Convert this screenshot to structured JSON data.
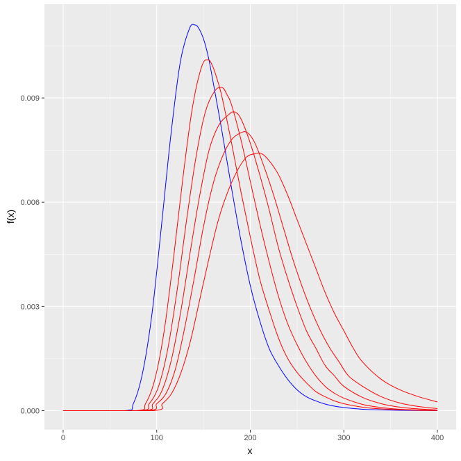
{
  "chart_data": {
    "type": "line",
    "title": "",
    "xlabel": "x",
    "ylabel": "f(x)",
    "xlim": [
      -20,
      420
    ],
    "ylim": [
      -0.00055,
      0.0117
    ],
    "x_ticks": [
      0,
      100,
      200,
      300,
      400
    ],
    "x_tick_labels": [
      "0",
      "100",
      "200",
      "300",
      "400"
    ],
    "y_ticks": [
      0.0,
      0.003,
      0.006,
      0.009
    ],
    "y_tick_labels": [
      "0.000",
      "0.003",
      "0.006",
      "0.009"
    ],
    "grid": true,
    "colors": {
      "panel": "#ebebeb",
      "grid": "#ffffff",
      "blue": "#0000ff",
      "red": "#ff0000"
    },
    "series": [
      {
        "color": "#0000ff",
        "x": [
          0,
          66,
          75,
          85,
          95,
          105,
          115,
          125,
          135,
          141,
          145,
          150,
          155,
          160,
          170,
          180,
          190,
          200,
          210,
          220,
          230,
          240,
          250,
          260,
          270,
          280,
          290,
          300,
          320,
          340,
          360,
          380,
          400
        ],
        "y": [
          0,
          0,
          0.0002,
          0.0011,
          0.0028,
          0.0053,
          0.0079,
          0.01,
          0.011,
          0.0111,
          0.011,
          0.0107,
          0.0102,
          0.0095,
          0.008,
          0.0064,
          0.0049,
          0.0036,
          0.0026,
          0.0018,
          0.0013,
          0.0009,
          0.0006,
          0.0004,
          0.00028,
          0.00019,
          0.00013,
          9e-05,
          4e-05,
          2e-05,
          1e-05,
          5e-06,
          2e-06
        ]
      },
      {
        "color": "#ff0000",
        "x": [
          0,
          78,
          88,
          98,
          108,
          118,
          128,
          138,
          148,
          155,
          160,
          165,
          170,
          180,
          190,
          200,
          210,
          220,
          230,
          240,
          250,
          260,
          270,
          280,
          290,
          300,
          320,
          340,
          360,
          380,
          400
        ],
        "y": [
          0,
          0,
          0.0002,
          0.0009,
          0.0023,
          0.0044,
          0.0067,
          0.0087,
          0.0099,
          0.0101,
          0.0099,
          0.0095,
          0.009,
          0.0077,
          0.0063,
          0.005,
          0.0038,
          0.0029,
          0.0021,
          0.0015,
          0.0011,
          0.0008,
          0.00055,
          0.0004,
          0.00028,
          0.0002,
          0.0001,
          5e-05,
          3e-05,
          1e-05,
          5e-06
        ]
      },
      {
        "color": "#ff0000",
        "x": [
          0,
          82,
          92,
          102,
          112,
          122,
          132,
          142,
          152,
          162,
          170,
          175,
          180,
          190,
          200,
          210,
          220,
          230,
          240,
          250,
          260,
          270,
          280,
          290,
          300,
          320,
          340,
          360,
          380,
          400
        ],
        "y": [
          0,
          0,
          0.0002,
          0.0007,
          0.0018,
          0.0035,
          0.0055,
          0.0073,
          0.0086,
          0.0092,
          0.0093,
          0.0091,
          0.0088,
          0.0078,
          0.0066,
          0.0054,
          0.0043,
          0.0033,
          0.0025,
          0.0019,
          0.0014,
          0.001,
          0.0007,
          0.0005,
          0.00036,
          0.00018,
          9e-05,
          4e-05,
          2e-05,
          1e-05
        ]
      },
      {
        "color": "#ff0000",
        "x": [
          0,
          86,
          96,
          106,
          116,
          126,
          136,
          146,
          156,
          166,
          176,
          183,
          190,
          200,
          210,
          220,
          230,
          240,
          250,
          260,
          270,
          280,
          290,
          300,
          320,
          340,
          360,
          380,
          400
        ],
        "y": [
          0,
          0,
          0.0002,
          0.0006,
          0.0015,
          0.0029,
          0.0046,
          0.0062,
          0.0075,
          0.0082,
          0.0085,
          0.0086,
          0.0084,
          0.0077,
          0.0068,
          0.0058,
          0.0047,
          0.0038,
          0.003,
          0.0023,
          0.0018,
          0.0013,
          0.001,
          0.0007,
          0.00038,
          0.0002,
          0.0001,
          5e-05,
          2e-05
        ]
      },
      {
        "color": "#ff0000",
        "x": [
          0,
          90,
          100,
          110,
          120,
          130,
          140,
          150,
          160,
          170,
          180,
          190,
          197,
          205,
          215,
          225,
          235,
          245,
          255,
          265,
          275,
          285,
          295,
          305,
          320,
          340,
          360,
          380,
          400
        ],
        "y": [
          0,
          0,
          0.0002,
          0.0005,
          0.0012,
          0.0024,
          0.0038,
          0.0053,
          0.0065,
          0.0073,
          0.0078,
          0.008,
          0.008,
          0.0077,
          0.007,
          0.0062,
          0.0053,
          0.0044,
          0.0036,
          0.0029,
          0.0023,
          0.0018,
          0.0014,
          0.001,
          0.0007,
          0.0004,
          0.00022,
          0.00012,
          6e-05
        ]
      },
      {
        "color": "#ff0000",
        "x": [
          0,
          96,
          106,
          116,
          126,
          136,
          146,
          156,
          166,
          176,
          186,
          196,
          206,
          212,
          220,
          230,
          240,
          250,
          260,
          270,
          280,
          290,
          300,
          310,
          320,
          340,
          360,
          380,
          400
        ],
        "y": [
          0,
          0,
          0.0002,
          0.0005,
          0.0011,
          0.002,
          0.0032,
          0.0044,
          0.0055,
          0.0063,
          0.0069,
          0.0073,
          0.0074,
          0.0074,
          0.0072,
          0.0068,
          0.0062,
          0.0055,
          0.0048,
          0.0041,
          0.0034,
          0.0028,
          0.0023,
          0.0018,
          0.0014,
          0.0009,
          0.0006,
          0.0004,
          0.00025
        ]
      }
    ]
  }
}
